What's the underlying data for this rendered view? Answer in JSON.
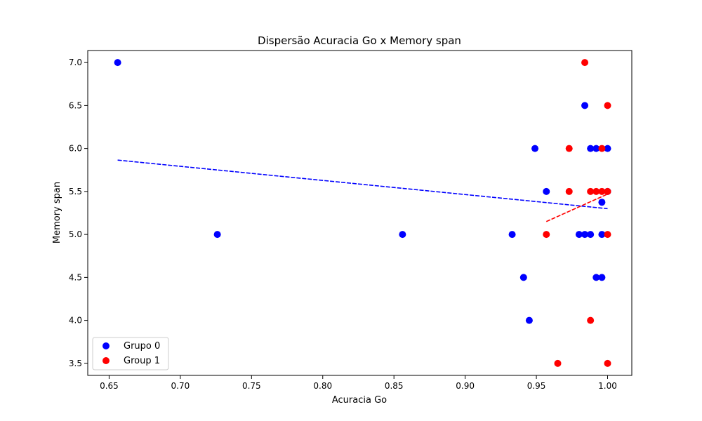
{
  "chart_data": {
    "type": "scatter",
    "title": "Dispersão Acuracia Go x Memory span",
    "xlabel": "Acuracia Go",
    "ylabel": "Memory span",
    "xlim": [
      0.635,
      1.017
    ],
    "ylim": [
      3.36,
      7.14
    ],
    "xticks": [
      0.65,
      0.7,
      0.75,
      0.8,
      0.85,
      0.9,
      0.95,
      1.0
    ],
    "xtick_labels": [
      "0.65",
      "0.70",
      "0.75",
      "0.80",
      "0.85",
      "0.90",
      "0.95",
      "1.00"
    ],
    "yticks": [
      3.5,
      4.0,
      4.5,
      5.0,
      5.5,
      6.0,
      6.5,
      7.0
    ],
    "ytick_labels": [
      "3.5",
      "4.0",
      "4.5",
      "5.0",
      "5.5",
      "6.0",
      "6.5",
      "7.0"
    ],
    "grid": false,
    "legend_position": "lower-left",
    "series": [
      {
        "name": "Grupo 0",
        "color": "#0000ff",
        "points": [
          [
            0.656,
            7.0
          ],
          [
            0.726,
            5.0
          ],
          [
            0.856,
            5.0
          ],
          [
            0.933,
            5.0
          ],
          [
            0.941,
            4.5
          ],
          [
            0.945,
            4.0
          ],
          [
            0.949,
            6.0
          ],
          [
            0.957,
            5.5
          ],
          [
            0.98,
            5.0
          ],
          [
            0.984,
            5.0
          ],
          [
            0.984,
            6.5
          ],
          [
            0.988,
            5.0
          ],
          [
            0.988,
            6.0
          ],
          [
            0.992,
            6.0
          ],
          [
            0.992,
            4.5
          ],
          [
            0.996,
            4.5
          ],
          [
            0.996,
            5.0
          ],
          [
            0.996,
            5.375
          ],
          [
            1.0,
            6.0
          ],
          [
            1.0,
            5.5
          ]
        ],
        "trendline": {
          "x": [
            0.656,
            1.0
          ],
          "y": [
            5.865,
            5.3
          ]
        }
      },
      {
        "name": "Group 1",
        "color": "#ff0000",
        "points": [
          [
            0.957,
            5.0
          ],
          [
            0.965,
            3.5
          ],
          [
            0.973,
            6.0
          ],
          [
            0.973,
            5.5
          ],
          [
            0.984,
            7.0
          ],
          [
            0.988,
            5.5
          ],
          [
            0.988,
            4.0
          ],
          [
            0.992,
            5.5
          ],
          [
            0.996,
            6.0
          ],
          [
            0.996,
            5.5
          ],
          [
            1.0,
            6.5
          ],
          [
            1.0,
            5.5
          ],
          [
            1.0,
            5.0
          ],
          [
            1.0,
            3.5
          ]
        ],
        "trendline": {
          "x": [
            0.957,
            1.0
          ],
          "y": [
            5.15,
            5.47
          ]
        }
      }
    ]
  }
}
